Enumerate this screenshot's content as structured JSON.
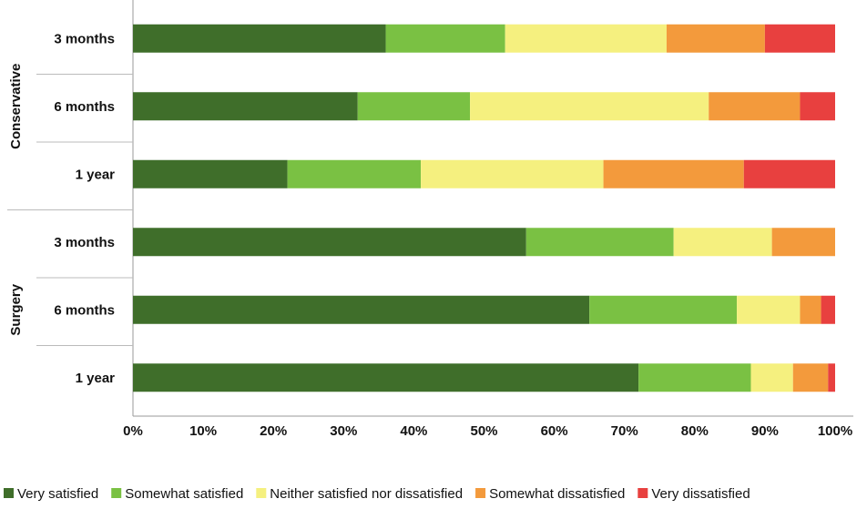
{
  "chart_data": {
    "type": "bar",
    "orientation": "horizontal",
    "stacked": true,
    "groups": [
      {
        "label": "Conservative",
        "categories": [
          "3 months",
          "6 months",
          "1 year"
        ]
      },
      {
        "label": "Surgery",
        "categories": [
          "3 months",
          "6 months",
          "1 year"
        ]
      }
    ],
    "x_ticks": [
      "0%",
      "10%",
      "20%",
      "30%",
      "40%",
      "50%",
      "60%",
      "70%",
      "80%",
      "90%",
      "100%"
    ],
    "xlim": [
      0,
      100
    ],
    "legend_position": "bottom",
    "grid": false,
    "series": [
      {
        "name": "Very satisfied",
        "color": "#3f6e2a",
        "values": [
          36,
          32,
          22,
          56,
          65,
          72
        ]
      },
      {
        "name": "Somewhat satisfied",
        "color": "#7ac143",
        "values": [
          17,
          16,
          19,
          21,
          21,
          16
        ]
      },
      {
        "name": "Neither satisfied nor dissatisfied",
        "color": "#f5f07f",
        "values": [
          23,
          34,
          26,
          14,
          9,
          6
        ]
      },
      {
        "name": "Somewhat dissatisfied",
        "color": "#f39a3c",
        "values": [
          14,
          13,
          20,
          9,
          3,
          5
        ]
      },
      {
        "name": "Very dissatisfied",
        "color": "#e8403f",
        "values": [
          10,
          5,
          13,
          0,
          2,
          1
        ]
      }
    ]
  }
}
